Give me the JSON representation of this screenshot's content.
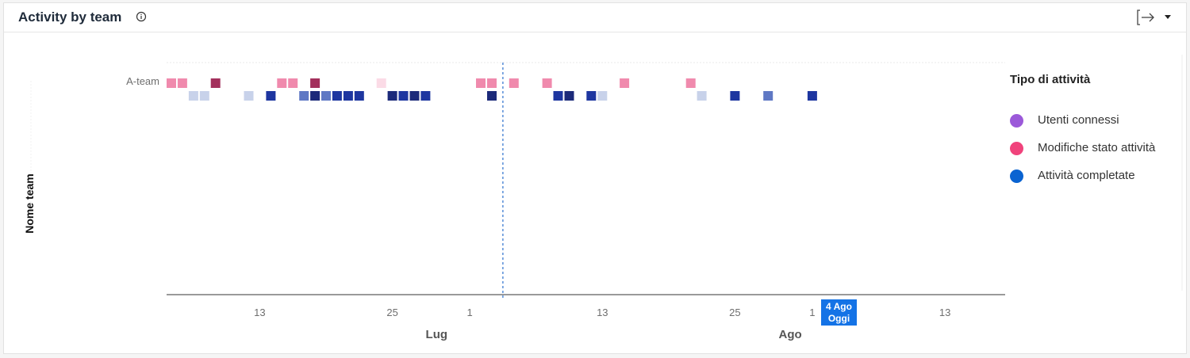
{
  "header": {
    "title": "Activity by team",
    "info_icon": "info-icon",
    "export_icon": "export-arrow-icon",
    "dropdown_icon": "caret-down-icon"
  },
  "legend": {
    "title": "Tipo di attività",
    "items": [
      {
        "label": "Utenti connessi",
        "color": "#9b59d9"
      },
      {
        "label": "Modifiche stato attività",
        "color": "#f0437c"
      },
      {
        "label": "Attività completate",
        "color": "#0a63d1"
      }
    ]
  },
  "chart_data": {
    "type": "heatmap",
    "ylabel": "Nome team",
    "rows": [
      "A-team"
    ],
    "x_start": "2024-07-05",
    "x_end": "2024-08-19",
    "x_ticks": [
      {
        "date": "2024-07-13",
        "label": "13"
      },
      {
        "date": "2024-07-25",
        "label": "25"
      },
      {
        "date": "2024-08-01",
        "label": "1"
      },
      {
        "date": "2024-08-13",
        "label": "13"
      },
      {
        "date": "2024-08-25",
        "label": "25"
      },
      {
        "date": "2024-09-01",
        "label": "1"
      },
      {
        "date": "2024-09-13",
        "label": "13"
      }
    ],
    "x_months": [
      {
        "date": "2024-07-29",
        "label": "Lug"
      },
      {
        "date": "2024-08-30",
        "label": "Ago"
      }
    ],
    "today": {
      "date": "2024-08-04",
      "line1": "4 Ago",
      "line2": "Oggi"
    },
    "series": [
      {
        "name": "Modifiche stato attività",
        "cells": [
          {
            "date": "2024-07-05",
            "intensity": 0.55
          },
          {
            "date": "2024-07-06",
            "intensity": 0.55
          },
          {
            "date": "2024-07-09",
            "intensity": 1.0
          },
          {
            "date": "2024-07-15",
            "intensity": 0.55
          },
          {
            "date": "2024-07-16",
            "intensity": 0.55
          },
          {
            "date": "2024-07-18",
            "intensity": 1.0
          },
          {
            "date": "2024-07-24",
            "intensity": 0.2
          },
          {
            "date": "2024-08-02",
            "intensity": 0.55
          },
          {
            "date": "2024-08-03",
            "intensity": 0.55
          },
          {
            "date": "2024-08-05",
            "intensity": 0.55
          },
          {
            "date": "2024-08-08",
            "intensity": 0.55
          },
          {
            "date": "2024-08-15",
            "intensity": 0.55
          },
          {
            "date": "2024-08-21",
            "intensity": 0.55
          }
        ]
      },
      {
        "name": "Attività completate",
        "cells": [
          {
            "date": "2024-07-07",
            "intensity": 0.2
          },
          {
            "date": "2024-07-08",
            "intensity": 0.2
          },
          {
            "date": "2024-07-12",
            "intensity": 0.2
          },
          {
            "date": "2024-07-14",
            "intensity": 0.85
          },
          {
            "date": "2024-07-17",
            "intensity": 0.55
          },
          {
            "date": "2024-07-18",
            "intensity": 1.0
          },
          {
            "date": "2024-07-19",
            "intensity": 0.55
          },
          {
            "date": "2024-07-20",
            "intensity": 0.85
          },
          {
            "date": "2024-07-21",
            "intensity": 0.85
          },
          {
            "date": "2024-07-22",
            "intensity": 0.85
          },
          {
            "date": "2024-07-25",
            "intensity": 1.0
          },
          {
            "date": "2024-07-26",
            "intensity": 0.85
          },
          {
            "date": "2024-07-27",
            "intensity": 1.0
          },
          {
            "date": "2024-07-28",
            "intensity": 0.85
          },
          {
            "date": "2024-08-03",
            "intensity": 1.0
          },
          {
            "date": "2024-08-09",
            "intensity": 0.85
          },
          {
            "date": "2024-08-10",
            "intensity": 1.0
          },
          {
            "date": "2024-08-12",
            "intensity": 0.85
          },
          {
            "date": "2024-08-13",
            "intensity": 0.2
          },
          {
            "date": "2024-08-22",
            "intensity": 0.2
          },
          {
            "date": "2024-08-25",
            "intensity": 0.85
          },
          {
            "date": "2024-08-28",
            "intensity": 0.55
          },
          {
            "date": "2024-09-01",
            "intensity": 0.85
          }
        ]
      }
    ],
    "colors": {
      "Modifiche stato attività": [
        "#fbdbe6",
        "#f08aad",
        "#a3305c"
      ],
      "Attività completate": [
        "#c8d2ea",
        "#5f78c4",
        "#1e36a0",
        "#1c2a7a"
      ]
    }
  }
}
